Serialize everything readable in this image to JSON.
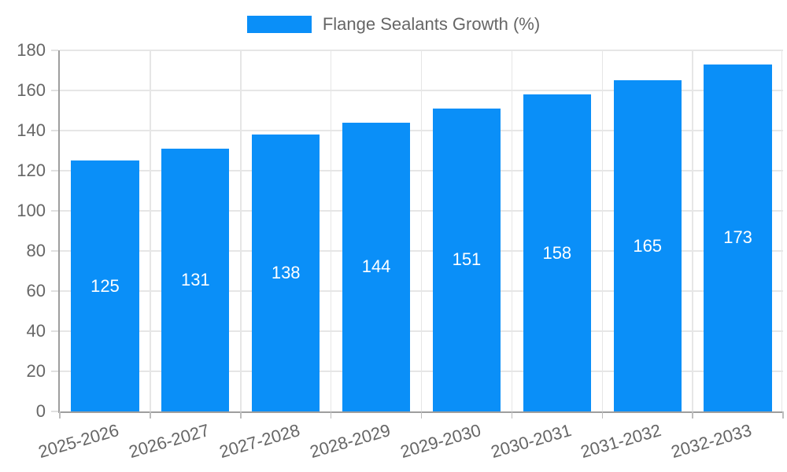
{
  "chart_data": {
    "type": "bar",
    "title": "",
    "xlabel": "",
    "ylabel": "",
    "legend_label": "Flange Sealants Growth (%)",
    "legend_position": "top",
    "categories": [
      "2025-2026",
      "2026-2027",
      "2027-2028",
      "2028-2029",
      "2029-2030",
      "2030-2031",
      "2031-2032",
      "2032-2033"
    ],
    "values": [
      125,
      131,
      138,
      144,
      151,
      158,
      165,
      173
    ],
    "value_labels": [
      "125",
      "131",
      "138",
      "144",
      "151",
      "158",
      "165",
      "173"
    ],
    "ylim": [
      0,
      180
    ],
    "ytick_step": 20,
    "ytick_labels": [
      "0",
      "20",
      "40",
      "60",
      "80",
      "100",
      "120",
      "140",
      "160",
      "180"
    ],
    "grid": true,
    "colors": {
      "bar": "#0a8ff8",
      "axis_text": "#666666",
      "value_text": "#ffffff",
      "grid_line": "#e6e6e6",
      "axis_line": "#9e9e9e",
      "tick_y": "#e0e0e0",
      "tick_x": "#bdbdbd"
    }
  }
}
